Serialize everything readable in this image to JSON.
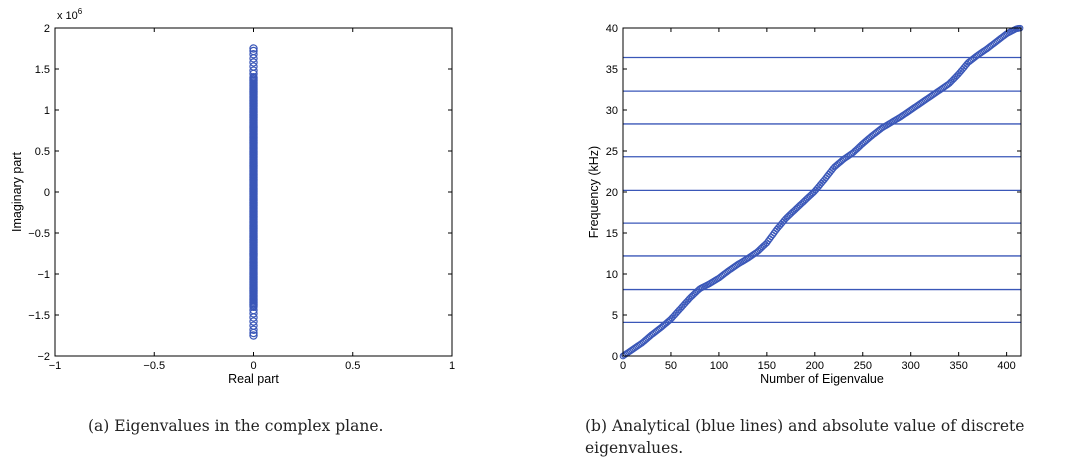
{
  "chart_data": [
    {
      "type": "scatter",
      "xlabel": "Real part",
      "ylabel": "Imaginary part",
      "multiplier_label": "x 10",
      "multiplier_exponent": "6",
      "xlim": [
        -1,
        1
      ],
      "ylim": [
        -2,
        2
      ],
      "xticks": [
        -1,
        -0.5,
        0,
        0.5,
        1
      ],
      "xtick_labels": [
        "−1",
        "−0.5",
        "0",
        "0.5",
        "1"
      ],
      "yticks": [
        -2,
        -1.5,
        -1,
        -0.5,
        0,
        0.5,
        1,
        1.5,
        2
      ],
      "ytick_labels": [
        "−2",
        "−1.5",
        "−1",
        "−0.5",
        "0",
        "0.5",
        "1",
        "1.5",
        "2"
      ],
      "series_color": "#3a57b8",
      "points": {
        "real": 0,
        "imag_range": [
          -1.75,
          1.75
        ],
        "imag_scale": 1000000,
        "sparse_tail_imag": [
          1.75,
          1.72,
          1.68,
          1.63,
          1.58,
          1.53,
          1.48,
          1.44,
          -1.44,
          -1.48,
          -1.53,
          -1.58,
          -1.63,
          -1.68,
          -1.72,
          -1.75
        ]
      },
      "caption": "(a)  Eigenvalues in the complex plane."
    },
    {
      "type": "line",
      "xlabel": "Number of Eigenvalue",
      "ylabel": "Frequency (kHz)",
      "xlim": [
        0,
        415
      ],
      "ylim": [
        0,
        40
      ],
      "xticks": [
        0,
        50,
        100,
        150,
        200,
        250,
        300,
        350,
        400
      ],
      "yticks": [
        0,
        5,
        10,
        15,
        20,
        25,
        30,
        35,
        40
      ],
      "series_color": "#3a57b8",
      "analytical_lines": [
        4.1,
        8.1,
        12.2,
        16.2,
        20.2,
        24.3,
        28.3,
        32.3,
        36.4
      ],
      "discrete_curve": {
        "x": [
          0,
          10,
          20,
          30,
          40,
          50,
          60,
          70,
          80,
          90,
          100,
          110,
          120,
          130,
          140,
          150,
          160,
          170,
          180,
          190,
          200,
          210,
          220,
          230,
          240,
          250,
          260,
          270,
          280,
          290,
          300,
          310,
          320,
          330,
          340,
          350,
          360,
          370,
          380,
          390,
          400,
          410,
          415
        ],
        "y": [
          0,
          0.8,
          1.6,
          2.6,
          3.5,
          4.5,
          5.8,
          7.1,
          8.2,
          8.8,
          9.5,
          10.4,
          11.2,
          11.9,
          12.7,
          13.8,
          15.4,
          16.8,
          17.9,
          19.0,
          20.1,
          21.5,
          23.0,
          24.0,
          24.8,
          25.9,
          26.9,
          27.8,
          28.5,
          29.2,
          30.0,
          30.8,
          31.6,
          32.4,
          33.2,
          34.4,
          35.8,
          36.7,
          37.5,
          38.4,
          39.3,
          39.9,
          40.0
        ]
      },
      "caption": "(b)  Analytical (blue lines) and absolute value of discrete eigenvalues."
    }
  ]
}
